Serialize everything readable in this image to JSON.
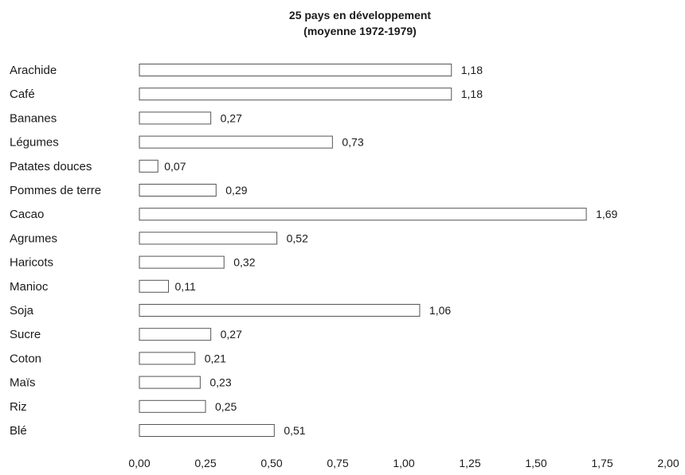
{
  "chart_data": {
    "type": "bar",
    "orientation": "horizontal",
    "title": "25 pays en développement",
    "subtitle": "(moyenne 1972-1979)",
    "categories": [
      "Arachide",
      "Café",
      "Bananes",
      "Légumes",
      "Patates douces",
      "Pommes de terre",
      "Cacao",
      "Agrumes",
      "Haricots",
      "Manioc",
      "Soja",
      "Sucre",
      "Coton",
      "Maïs",
      "Riz",
      "Blé"
    ],
    "values": [
      1.18,
      1.18,
      0.27,
      0.73,
      0.07,
      0.29,
      1.69,
      0.52,
      0.32,
      0.11,
      1.06,
      0.27,
      0.21,
      0.23,
      0.25,
      0.51
    ],
    "value_labels": [
      "1,18",
      "1,18",
      "0,27",
      "0,73",
      "0,07",
      "0,29",
      "1,69",
      "0,52",
      "0,32",
      "0,11",
      "1,06",
      "0,27",
      "0,21",
      "0,23",
      "0,25",
      "0,51"
    ],
    "xlim": [
      0,
      2
    ],
    "x_ticks": [
      0,
      0.25,
      0.5,
      0.75,
      1,
      1.25,
      1.5,
      1.75,
      2
    ],
    "x_tick_labels": [
      "0,00",
      "0,25",
      "0,50",
      "0,75",
      "1,00",
      "1,25",
      "1,50",
      "1,75",
      "2,00"
    ],
    "xlabel": "",
    "ylabel": "",
    "grid": false,
    "legend": "none",
    "colors": {
      "bar_fill": "#ffffff",
      "bar_stroke": "#555555",
      "text": "#1a1a1a"
    }
  }
}
